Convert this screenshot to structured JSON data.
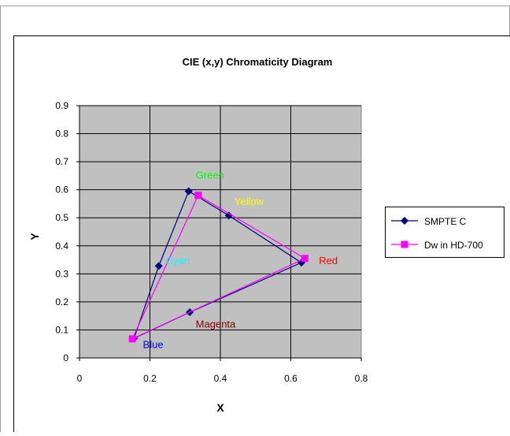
{
  "chart_data": {
    "type": "scatter",
    "title": "CIE (x,y) Chromaticity Diagram",
    "xlabel": "X",
    "ylabel": "Y",
    "xlim": [
      0,
      0.8
    ],
    "ylim": [
      0,
      0.9
    ],
    "x_ticks": [
      "0",
      "0.2",
      "0.4",
      "0.6",
      "0.8"
    ],
    "y_ticks": [
      "0",
      "0.1",
      "0.2",
      "0.3",
      "0.4",
      "0.5",
      "0.6",
      "0.7",
      "0.8",
      "0.9"
    ],
    "grid": true,
    "plot_background": "#c0c0c0",
    "legend_position": "right",
    "series": [
      {
        "name": "SMPTE C",
        "color": "#000080",
        "marker": "diamond",
        "x": [
          0.31,
          0.424,
          0.63,
          0.313,
          0.155,
          0.225,
          0.31
        ],
        "y": [
          0.595,
          0.508,
          0.34,
          0.163,
          0.07,
          0.328,
          0.595
        ]
      },
      {
        "name": "Dw in HD-700",
        "color": "#ff00ff",
        "marker": "square",
        "x": [
          0.337,
          0.64,
          0.15,
          0.337
        ],
        "y": [
          0.58,
          0.355,
          0.068,
          0.58
        ]
      }
    ],
    "annotations": [
      {
        "text": "Green",
        "x": 0.33,
        "y": 0.64,
        "color": "#00ff00"
      },
      {
        "text": "Yellow",
        "x": 0.44,
        "y": 0.545,
        "color": "#ffff00"
      },
      {
        "text": "Red",
        "x": 0.68,
        "y": 0.335,
        "color": "#ff0000"
      },
      {
        "text": "Cyan",
        "x": 0.245,
        "y": 0.335,
        "color": "#00ffff"
      },
      {
        "text": "Magenta",
        "x": 0.33,
        "y": 0.108,
        "color": "#800000"
      },
      {
        "text": "Blue",
        "x": 0.18,
        "y": 0.035,
        "color": "#0000ff"
      }
    ]
  }
}
